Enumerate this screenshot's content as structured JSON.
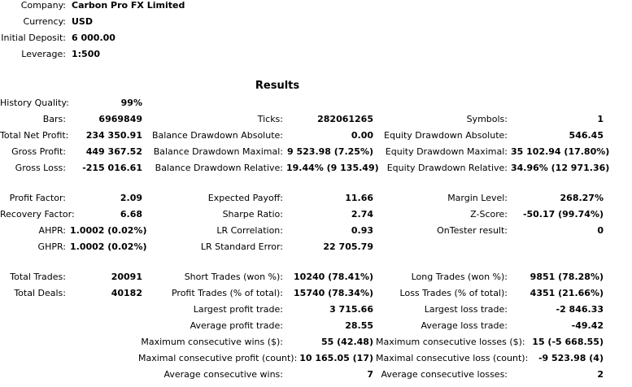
{
  "header": {
    "company_label": "Company:",
    "company_value": "Carbon Pro FX Limited",
    "currency_label": "Currency:",
    "currency_value": "USD",
    "initial_deposit_label": "Initial Deposit:",
    "initial_deposit_value": "6 000.00",
    "leverage_label": "Leverage:",
    "leverage_value": "1:500"
  },
  "results": {
    "title": "Results",
    "history_quality_label": "History Quality:",
    "history_quality_value": "99%",
    "bars_label": "Bars:",
    "bars_value": "6969849",
    "ticks_label": "Ticks:",
    "ticks_value": "282061265",
    "symbols_label": "Symbols:",
    "symbols_value": "1",
    "total_net_profit_label": "Total Net Profit:",
    "total_net_profit_value": "234 350.91",
    "balance_drawdown_absolute_label": "Balance Drawdown Absolute:",
    "balance_drawdown_absolute_value": "0.00",
    "equity_drawdown_absolute_label": "Equity Drawdown Absolute:",
    "equity_drawdown_absolute_value": "546.45",
    "gross_profit_label": "Gross Profit:",
    "gross_profit_value": "449 367.52",
    "balance_drawdown_maximal_label": "Balance Drawdown Maximal:",
    "balance_drawdown_maximal_value": "9 523.98 (7.25%)",
    "equity_drawdown_maximal_label": "Equity Drawdown Maximal:",
    "equity_drawdown_maximal_value": "35 102.94 (17.80%)",
    "gross_loss_label": "Gross Loss:",
    "gross_loss_value": "-215 016.61",
    "balance_drawdown_relative_label": "Balance Drawdown Relative:",
    "balance_drawdown_relative_value": "19.44% (9 135.49)",
    "equity_drawdown_relative_label": "Equity Drawdown Relative:",
    "equity_drawdown_relative_value": "34.96% (12 971.36)",
    "profit_factor_label": "Profit Factor:",
    "profit_factor_value": "2.09",
    "expected_payoff_label": "Expected Payoff:",
    "expected_payoff_value": "11.66",
    "margin_level_label": "Margin Level:",
    "margin_level_value": "268.27%",
    "recovery_factor_label": "Recovery Factor:",
    "recovery_factor_value": "6.68",
    "sharpe_ratio_label": "Sharpe Ratio:",
    "sharpe_ratio_value": "2.74",
    "z_score_label": "Z-Score:",
    "z_score_value": "-50.17 (99.74%)",
    "ahpr_label": "AHPR:",
    "ahpr_value": "1.0002 (0.02%)",
    "lr_correlation_label": "LR Correlation:",
    "lr_correlation_value": "0.93",
    "ontester_result_label": "OnTester result:",
    "ontester_result_value": "0",
    "ghpr_label": "GHPR:",
    "ghpr_value": "1.0002 (0.02%)",
    "lr_standard_error_label": "LR Standard Error:",
    "lr_standard_error_value": "22 705.79",
    "total_trades_label": "Total Trades:",
    "total_trades_value": "20091",
    "short_trades_label": "Short Trades (won %):",
    "short_trades_value": "10240 (78.41%)",
    "long_trades_label": "Long Trades (won %):",
    "long_trades_value": "9851 (78.28%)",
    "total_deals_label": "Total Deals:",
    "total_deals_value": "40182",
    "profit_trades_label": "Profit Trades (% of total):",
    "profit_trades_value": "15740 (78.34%)",
    "loss_trades_label": "Loss Trades (% of total):",
    "loss_trades_value": "4351 (21.66%)",
    "largest_profit_trade_label": "Largest profit trade:",
    "largest_profit_trade_value": "3 715.66",
    "largest_loss_trade_label": "Largest loss trade:",
    "largest_loss_trade_value": "-2 846.33",
    "average_profit_trade_label": "Average profit trade:",
    "average_profit_trade_value": "28.55",
    "average_loss_trade_label": "Average loss trade:",
    "average_loss_trade_value": "-49.42",
    "max_consecutive_wins_label": "Maximum consecutive wins ($):",
    "max_consecutive_wins_value": "55 (42.48)",
    "max_consecutive_losses_label": "Maximum consecutive losses ($):",
    "max_consecutive_losses_value": "15 (-5 668.55)",
    "maximal_consecutive_profit_label": "Maximal consecutive profit (count):",
    "maximal_consecutive_profit_value": "10 165.05 (17)",
    "maximal_consecutive_loss_label": "Maximal consecutive loss (count):",
    "maximal_consecutive_loss_value": "-9 523.98 (4)",
    "average_consecutive_wins_label": "Average consecutive wins:",
    "average_consecutive_wins_value": "7",
    "average_consecutive_losses_label": "Average consecutive losses:",
    "average_consecutive_losses_value": "2"
  }
}
